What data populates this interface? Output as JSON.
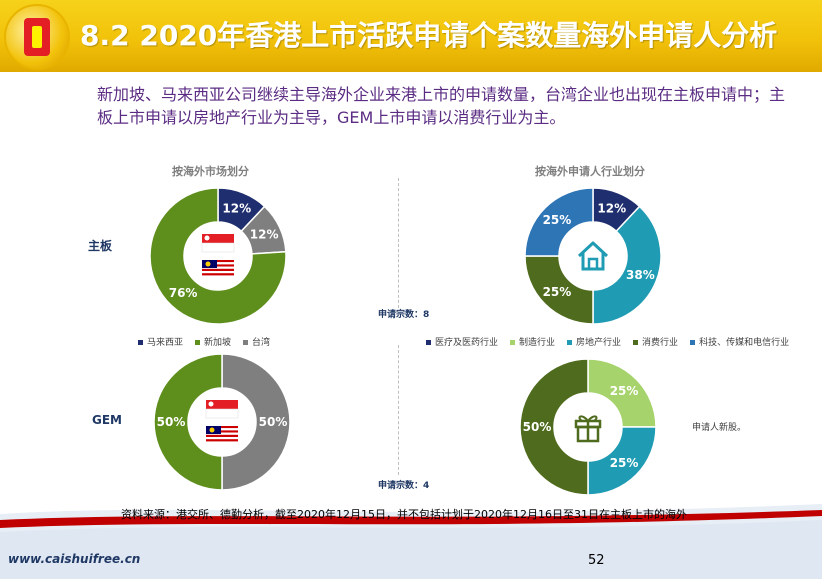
{
  "header": {
    "title": "8.2 2020年香港上市活跃申请个案数量海外申请人分析"
  },
  "summary": "新加坡、马来西亚公司继续主导海外企业来港上市的申请数量，台湾企业也出现在主板申请中；主板上市申请以房地产行业为主导，GEM上市申请以消费行业为主。",
  "labels": {
    "market_title": "按海外市场划分",
    "industry_title": "按海外申请人行业划分",
    "row_main": "主板",
    "row_gem": "GEM",
    "count_main": "申请宗数：8",
    "count_gem": "申请宗数：4",
    "note": "申请人新股。"
  },
  "source": "资料来源：港交所、德勤分析，截至2020年12月15日，并不包括计划于2020年12月16日至31日在主板上市的海外",
  "footer": {
    "site": "www.caishuifree.cn",
    "page": "52"
  },
  "colors": {
    "title_bg": "#f2c20a",
    "summary_text": "#5b2c83",
    "malaysia": "#1f2e6e",
    "singapore": "#5e8e1c",
    "taiwan": "#7f7f7f",
    "medical": "#1f2e6e",
    "manufacturing": "#a6d36b",
    "real_estate": "#1f9cb3",
    "consumer": "#4f6b1d",
    "tech": "#2e75b6"
  },
  "chart_data": [
    {
      "type": "pie",
      "id": "main-market",
      "title": "按海外市场划分",
      "row": "主板",
      "slices": [
        {
          "name": "马来西亚",
          "value": 12,
          "label": "12%",
          "color": "#1f2e6e"
        },
        {
          "name": "台湾",
          "value": 12,
          "label": "12%",
          "color": "#7f7f7f"
        },
        {
          "name": "新加坡",
          "value": 76,
          "label": "76%",
          "color": "#5e8e1c"
        }
      ],
      "center_icons": [
        "singapore-flag-icon",
        "malaysia-flag-icon"
      ]
    },
    {
      "type": "pie",
      "id": "main-industry",
      "title": "按海外申请人行业划分",
      "row": "主板",
      "slices": [
        {
          "name": "医疗及医药行业",
          "value": 12,
          "label": "12%",
          "color": "#1f2e6e"
        },
        {
          "name": "房地产行业",
          "value": 38,
          "label": "38%",
          "color": "#1f9cb3"
        },
        {
          "name": "消费行业",
          "value": 25,
          "label": "25%",
          "color": "#4f6b1d"
        },
        {
          "name": "科技、传媒和电信行业",
          "value": 25,
          "label": "25%",
          "color": "#2e75b6"
        }
      ],
      "center_icons": [
        "house-icon"
      ]
    },
    {
      "type": "pie",
      "id": "gem-market",
      "row": "GEM",
      "slices": [
        {
          "name": "台湾",
          "value": 50,
          "label": "50%",
          "color": "#7f7f7f"
        },
        {
          "name": "新加坡",
          "value": 50,
          "label": "50%",
          "color": "#5e8e1c"
        }
      ],
      "center_icons": [
        "singapore-flag-icon",
        "malaysia-flag-icon"
      ]
    },
    {
      "type": "pie",
      "id": "gem-industry",
      "row": "GEM",
      "slices": [
        {
          "name": "制造行业",
          "value": 25,
          "label": "25%",
          "color": "#a6d36b"
        },
        {
          "name": "房地产行业",
          "value": 25,
          "label": "25%",
          "color": "#1f9cb3"
        },
        {
          "name": "消费行业",
          "value": 50,
          "label": "50%",
          "color": "#4f6b1d"
        }
      ],
      "center_icons": [
        "gift-icon"
      ]
    }
  ],
  "legend_market": [
    {
      "name": "马来西亚",
      "color": "#1f2e6e"
    },
    {
      "name": "新加坡",
      "color": "#5e8e1c"
    },
    {
      "name": "台湾",
      "color": "#7f7f7f"
    }
  ],
  "legend_industry": [
    {
      "name": "医疗及医药行业",
      "color": "#1f2e6e"
    },
    {
      "name": "制造行业",
      "color": "#a6d36b"
    },
    {
      "name": "房地产行业",
      "color": "#1f9cb3"
    },
    {
      "name": "消费行业",
      "color": "#4f6b1d"
    },
    {
      "name": "科技、传媒和电信行业",
      "color": "#2e75b6"
    }
  ]
}
